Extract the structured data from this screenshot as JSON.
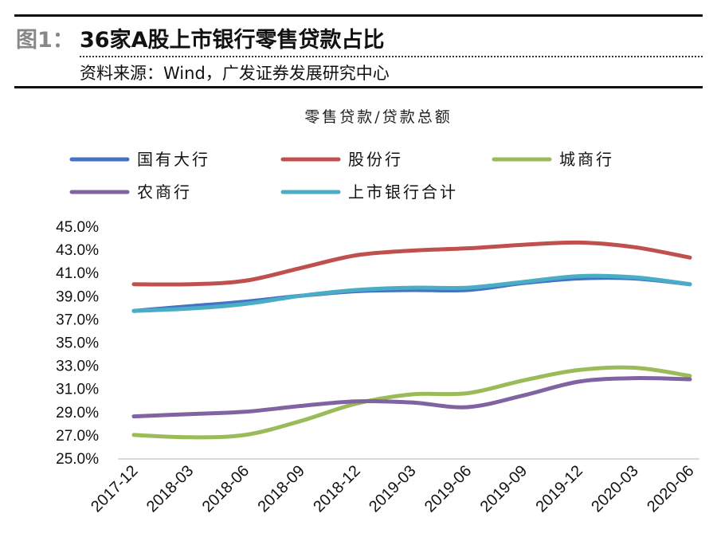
{
  "header": {
    "figure_label": "图1：",
    "title": "36家A股上市银行零售贷款占比",
    "source": "资料来源：Wind，广发证券发展研究中心"
  },
  "chart_data": {
    "type": "line",
    "title": "零售贷款/贷款总额",
    "xlabel": "",
    "ylabel": "",
    "x": [
      "2017-12",
      "2018-03",
      "2018-06",
      "2018-09",
      "2018-12",
      "2019-03",
      "2019-06",
      "2019-09",
      "2019-12",
      "2020-03",
      "2020-06"
    ],
    "ylim": [
      25,
      45
    ],
    "yticks": [
      "25.0%",
      "27.0%",
      "29.0%",
      "31.0%",
      "33.0%",
      "35.0%",
      "37.0%",
      "39.0%",
      "41.0%",
      "43.0%",
      "45.0%"
    ],
    "grid": false,
    "legend": "top",
    "series": [
      {
        "name": "国有大行",
        "color": "#4472C4",
        "values": [
          37.7,
          38.1,
          38.5,
          39.0,
          39.4,
          39.5,
          39.5,
          40.1,
          40.5,
          40.5,
          40.0
        ]
      },
      {
        "name": "股份行",
        "color": "#C0504D",
        "values": [
          40.0,
          40.0,
          40.3,
          41.4,
          42.5,
          42.9,
          43.1,
          43.4,
          43.6,
          43.2,
          42.3
        ]
      },
      {
        "name": "城商行",
        "color": "#9BBB59",
        "values": [
          27.0,
          26.8,
          27.0,
          28.2,
          29.7,
          30.5,
          30.6,
          31.7,
          32.6,
          32.8,
          32.1
        ]
      },
      {
        "name": "农商行",
        "color": "#8064A2",
        "values": [
          28.6,
          28.8,
          29.0,
          29.5,
          29.9,
          29.8,
          29.4,
          30.4,
          31.6,
          31.9,
          31.8
        ]
      },
      {
        "name": "上市银行合计",
        "color": "#4BACC6",
        "values": [
          37.7,
          37.9,
          38.3,
          39.0,
          39.5,
          39.7,
          39.7,
          40.2,
          40.7,
          40.6,
          40.0
        ]
      }
    ]
  }
}
